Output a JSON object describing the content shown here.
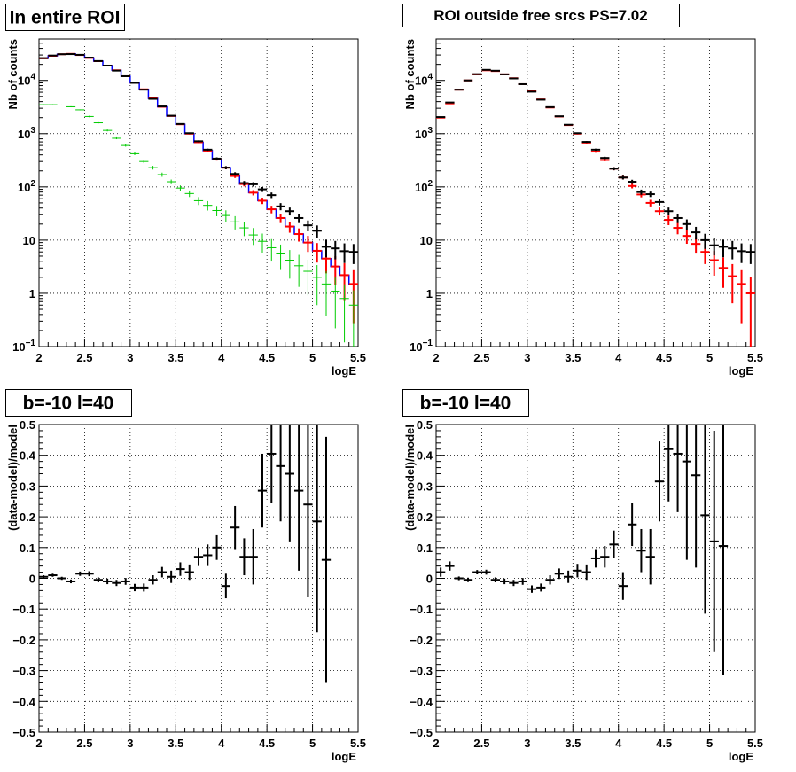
{
  "colors": {
    "data": "#000000",
    "model": "#ff0000",
    "model_alt": "#0000ff",
    "component": "#00cc00"
  },
  "chart_data": [
    {
      "id": "p1",
      "type": "scatter",
      "title": "In entire ROI",
      "xlabel": "logE",
      "ylabel": "Nb of counts",
      "xlim": [
        2,
        5.5
      ],
      "ylim": [
        0.1,
        60000
      ],
      "yscale": "log",
      "grid": true,
      "x_ticks": [
        "2",
        "2.5",
        "3",
        "3.5",
        "4",
        "4.5",
        "5",
        "5.5"
      ],
      "y_ticks": [
        "10⁻¹",
        "1",
        "10",
        "10²",
        "10³",
        "10⁴"
      ],
      "bin_width": 0.1,
      "series": [
        {
          "style": "step",
          "color": "#0000ff",
          "x": [
            2.05,
            2.15,
            2.25,
            2.35,
            2.45,
            2.55,
            2.65,
            2.75,
            2.85,
            2.95,
            3.05,
            3.15,
            3.25,
            3.35,
            3.45,
            3.55,
            3.65,
            3.75,
            3.85,
            3.95,
            4.05,
            4.15,
            4.25,
            4.35,
            4.45,
            4.55,
            4.65,
            4.75,
            4.85,
            4.95,
            5.05,
            5.15,
            5.25,
            5.35,
            5.45
          ],
          "y": [
            26000,
            29000,
            31000,
            31500,
            30000,
            26500,
            23000,
            19000,
            15500,
            12000,
            9000,
            6800,
            4600,
            3200,
            2150,
            1500,
            1000,
            690,
            480,
            330,
            230,
            160,
            113,
            78,
            55,
            38,
            26,
            18,
            13,
            9,
            6.3,
            4.5,
            3.2,
            2.2,
            1.5
          ]
        },
        {
          "style": "err",
          "color": "#ff0000",
          "x": [
            2.05,
            2.15,
            2.25,
            2.35,
            2.45,
            2.55,
            2.65,
            2.75,
            2.85,
            2.95,
            3.05,
            3.15,
            3.25,
            3.35,
            3.45,
            3.55,
            3.65,
            3.75,
            3.85,
            3.95,
            4.05,
            4.15,
            4.25,
            4.35,
            4.45,
            4.55,
            4.65,
            4.75,
            4.85,
            4.95,
            5.05,
            5.15,
            5.25,
            5.35,
            5.45
          ],
          "y": [
            26000,
            29000,
            31000,
            31500,
            30000,
            26500,
            23000,
            19000,
            15500,
            12000,
            9000,
            6800,
            4600,
            3200,
            2150,
            1500,
            1000,
            690,
            480,
            330,
            230,
            160,
            113,
            78,
            55,
            38,
            26,
            18,
            13,
            9,
            6.3,
            4.5,
            3.2,
            2.2,
            1.5
          ]
        },
        {
          "style": "err",
          "color": "#00cc00",
          "x": [
            2.05,
            2.15,
            2.25,
            2.35,
            2.45,
            2.55,
            2.65,
            2.75,
            2.85,
            2.95,
            3.05,
            3.15,
            3.25,
            3.35,
            3.45,
            3.55,
            3.65,
            3.75,
            3.85,
            3.95,
            4.05,
            4.15,
            4.25,
            4.35,
            4.45,
            4.55,
            4.65,
            4.75,
            4.85,
            4.95,
            5.05,
            5.15,
            5.25,
            5.35,
            5.45
          ],
          "y": [
            3500,
            3500,
            3450,
            3200,
            2800,
            2100,
            1600,
            1150,
            820,
            600,
            420,
            300,
            230,
            170,
            125,
            95,
            75,
            55,
            45,
            36,
            29,
            22,
            17,
            12.5,
            9.5,
            7.2,
            5.5,
            4.2,
            3.3,
            2.6,
            2.0,
            1.5,
            1.1,
            0.8,
            0.6
          ],
          "rel_err": [
            0.02,
            0.02,
            0.02,
            0.02,
            0.02,
            0.03,
            0.03,
            0.04,
            0.04,
            0.05,
            0.06,
            0.07,
            0.08,
            0.09,
            0.1,
            0.12,
            0.14,
            0.17,
            0.2,
            0.22,
            0.25,
            0.28,
            0.3,
            0.35,
            0.4,
            0.45,
            0.5,
            0.55,
            0.6,
            0.65,
            0.7,
            0.75,
            0.8,
            0.85,
            0.9
          ]
        },
        {
          "style": "err",
          "color": "#000000",
          "x": [
            2.05,
            2.15,
            2.25,
            2.35,
            2.45,
            2.55,
            2.65,
            2.75,
            2.85,
            2.95,
            3.05,
            3.15,
            3.25,
            3.35,
            3.45,
            3.55,
            3.65,
            3.75,
            3.85,
            3.95,
            4.05,
            4.15,
            4.25,
            4.35,
            4.45,
            4.55,
            4.65,
            4.75,
            4.85,
            4.95,
            5.05,
            5.15,
            5.25,
            5.35,
            5.45
          ],
          "y": [
            26200,
            29300,
            31000,
            31200,
            30200,
            26800,
            23100,
            19000,
            15300,
            12000,
            9000,
            6700,
            4500,
            3250,
            2170,
            1520,
            1020,
            720,
            500,
            340,
            230,
            175,
            118,
            112,
            90,
            70,
            43,
            35,
            26,
            19,
            15,
            7.5,
            7.0,
            6.2,
            6.0
          ]
        }
      ]
    },
    {
      "id": "p2",
      "type": "scatter",
      "title": "ROI outside free srcs PS=7.02",
      "xlabel": "logE",
      "ylabel": "Nb of counts",
      "xlim": [
        2,
        5.5
      ],
      "ylim": [
        0.1,
        60000
      ],
      "yscale": "log",
      "grid": true,
      "x_ticks": [
        "2",
        "2.5",
        "3",
        "3.5",
        "4",
        "4.5",
        "5",
        "5.5"
      ],
      "y_ticks": [
        "10⁻¹",
        "1",
        "10",
        "10²",
        "10³",
        "10⁴"
      ],
      "bin_width": 0.1,
      "series": [
        {
          "style": "err",
          "color": "#ff0000",
          "x": [
            2.05,
            2.15,
            2.25,
            2.35,
            2.45,
            2.55,
            2.65,
            2.75,
            2.85,
            2.95,
            3.05,
            3.15,
            3.25,
            3.35,
            3.45,
            3.55,
            3.65,
            3.75,
            3.85,
            3.95,
            4.05,
            4.15,
            4.25,
            4.35,
            4.45,
            4.55,
            4.65,
            4.75,
            4.85,
            4.95,
            5.05,
            5.15,
            5.25,
            5.35,
            5.45
          ],
          "y": [
            2000,
            3700,
            6700,
            10000,
            13000,
            15500,
            15000,
            13000,
            11000,
            8500,
            6300,
            4400,
            3100,
            2100,
            1450,
            1000,
            680,
            460,
            320,
            220,
            150,
            104,
            72,
            50,
            35,
            24,
            17,
            12,
            8.5,
            6,
            4.2,
            3,
            2.1,
            1.5,
            1.0
          ]
        },
        {
          "style": "err",
          "color": "#000000",
          "x": [
            2.05,
            2.15,
            2.25,
            2.35,
            2.45,
            2.55,
            2.65,
            2.75,
            2.85,
            2.95,
            3.05,
            3.15,
            3.25,
            3.35,
            3.45,
            3.55,
            3.65,
            3.75,
            3.85,
            3.95,
            4.05,
            4.15,
            4.25,
            4.35,
            4.45,
            4.55,
            4.65,
            4.75,
            4.85,
            4.95,
            5.05,
            5.15,
            5.25,
            5.35,
            5.45
          ],
          "y": [
            2050,
            3850,
            6700,
            10000,
            13100,
            15800,
            15200,
            13000,
            10900,
            8500,
            6150,
            4350,
            3150,
            2120,
            1470,
            1020,
            700,
            500,
            350,
            220,
            150,
            125,
            80,
            73,
            52,
            35,
            26,
            20,
            14,
            10,
            8,
            7.5,
            7,
            6.2,
            6
          ]
        }
      ]
    },
    {
      "id": "p3",
      "type": "scatter",
      "title": "b=-10 l=40",
      "xlabel": "logE",
      "ylabel": "(data-model)/model",
      "xlim": [
        2,
        5.5
      ],
      "ylim": [
        -0.5,
        0.5
      ],
      "yscale": "linear",
      "grid": true,
      "x_ticks": [
        "2",
        "2.5",
        "3",
        "3.5",
        "4",
        "4.5",
        "5",
        "5.5"
      ],
      "y_ticks": [
        "−0.5",
        "−0.4",
        "−0.3",
        "−0.2",
        "−0.1",
        "0",
        "0.1",
        "0.2",
        "0.3",
        "0.4",
        "0.5"
      ],
      "bin_width": 0.1,
      "series": [
        {
          "style": "err",
          "color": "#000000",
          "x": [
            2.05,
            2.15,
            2.25,
            2.35,
            2.45,
            2.55,
            2.65,
            2.75,
            2.85,
            2.95,
            3.05,
            3.15,
            3.25,
            3.35,
            3.45,
            3.55,
            3.65,
            3.75,
            3.85,
            3.95,
            4.05,
            4.15,
            4.25,
            4.35,
            4.45,
            4.55,
            4.65,
            4.75,
            4.85,
            4.95,
            5.05,
            5.15
          ],
          "y": [
            0.005,
            0.01,
            0.0,
            -0.01,
            0.015,
            0.015,
            -0.005,
            -0.01,
            -0.015,
            -0.01,
            -0.03,
            -0.03,
            -0.005,
            0.02,
            0.005,
            0.03,
            0.02,
            0.07,
            0.075,
            0.1,
            -0.025,
            0.165,
            0.07,
            0.07,
            0.285,
            0.405,
            0.365,
            0.34,
            0.285,
            0.24,
            0.185,
            0.06
          ],
          "err": [
            0.005,
            0.005,
            0.005,
            0.006,
            0.007,
            0.008,
            0.008,
            0.009,
            0.01,
            0.011,
            0.012,
            0.013,
            0.015,
            0.017,
            0.02,
            0.022,
            0.025,
            0.03,
            0.035,
            0.04,
            0.04,
            0.07,
            0.06,
            0.09,
            0.12,
            0.16,
            0.18,
            0.22,
            0.26,
            0.3,
            0.36,
            0.4
          ]
        }
      ]
    },
    {
      "id": "p4",
      "type": "scatter",
      "title": "b=-10 l=40",
      "xlabel": "logE",
      "ylabel": "(data-model)/model",
      "xlim": [
        2,
        5.5
      ],
      "ylim": [
        -0.5,
        0.5
      ],
      "yscale": "linear",
      "grid": true,
      "x_ticks": [
        "2",
        "2.5",
        "3",
        "3.5",
        "4",
        "4.5",
        "5",
        "5.5"
      ],
      "y_ticks": [
        "−0.5",
        "−0.4",
        "−0.3",
        "−0.2",
        "−0.1",
        "0",
        "0.1",
        "0.2",
        "0.3",
        "0.4",
        "0.5"
      ],
      "bin_width": 0.1,
      "series": [
        {
          "style": "err",
          "color": "#000000",
          "x": [
            2.05,
            2.15,
            2.25,
            2.35,
            2.45,
            2.55,
            2.65,
            2.75,
            2.85,
            2.95,
            3.05,
            3.15,
            3.25,
            3.35,
            3.45,
            3.55,
            3.65,
            3.75,
            3.85,
            3.95,
            4.05,
            4.15,
            4.25,
            4.35,
            4.45,
            4.55,
            4.65,
            4.75,
            4.85,
            4.95,
            5.05,
            5.15
          ],
          "y": [
            0.02,
            0.04,
            0.0,
            -0.005,
            0.02,
            0.02,
            -0.005,
            -0.01,
            -0.015,
            -0.01,
            -0.035,
            -0.03,
            -0.005,
            0.015,
            0.005,
            0.025,
            0.02,
            0.065,
            0.07,
            0.11,
            -0.025,
            0.175,
            0.09,
            0.07,
            0.315,
            0.42,
            0.405,
            0.38,
            0.335,
            0.205,
            0.12,
            0.105
          ],
          "err": [
            0.015,
            0.015,
            0.006,
            0.007,
            0.007,
            0.008,
            0.008,
            0.009,
            0.01,
            0.011,
            0.012,
            0.013,
            0.015,
            0.017,
            0.02,
            0.022,
            0.025,
            0.03,
            0.035,
            0.045,
            0.045,
            0.07,
            0.07,
            0.09,
            0.13,
            0.17,
            0.19,
            0.32,
            0.3,
            0.32,
            0.36,
            0.42
          ]
        }
      ]
    }
  ]
}
